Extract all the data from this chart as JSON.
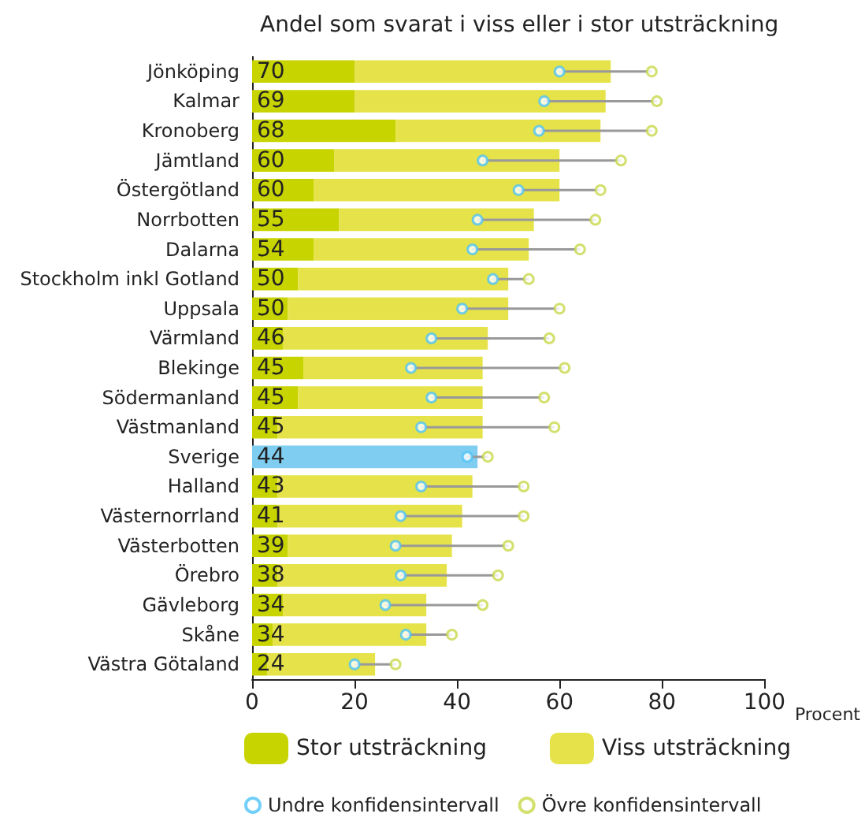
{
  "chart_data": {
    "type": "bar",
    "orientation": "horizontal",
    "stacked": true,
    "title": "Andel som svarat i viss eller i stor utsträckning",
    "xlabel": "Procent",
    "categories": [
      "Jönköping",
      "Kalmar",
      "Kronoberg",
      "Jämtland",
      "Östergötland",
      "Norrbotten",
      "Dalarna",
      "Stockholm inkl Gotland",
      "Uppsala",
      "Värmland",
      "Blekinge",
      "Södermanland",
      "Västmanland",
      "Sverige",
      "Halland",
      "Västernorrland",
      "Västerbotten",
      "Örebro",
      "Gävleborg",
      "Skåne",
      "Västra Götaland"
    ],
    "series": [
      {
        "name": "Stor utsträckning",
        "color": "#c8d400",
        "values": [
          20,
          20,
          28,
          16,
          12,
          17,
          12,
          9,
          7,
          6,
          10,
          9,
          5,
          null,
          5,
          5,
          7,
          5,
          6,
          4,
          3
        ]
      },
      {
        "name": "Viss utsträckning",
        "color": "#e6e34a",
        "colors": [
          "#e6e34a",
          "#e6e34a",
          "#e6e34a",
          "#e6e34a",
          "#e6e34a",
          "#e6e34a",
          "#e6e34a",
          "#e6e34a",
          "#e6e34a",
          "#e6e34a",
          "#e6e34a",
          "#e6e34a",
          "#e6e34a",
          "#7fcdf0",
          "#e6e34a",
          "#e6e34a",
          "#e6e34a",
          "#e6e34a",
          "#e6e34a",
          "#e6e34a",
          "#e6e34a"
        ],
        "values": [
          50,
          49,
          40,
          44,
          48,
          38,
          42,
          41,
          43,
          40,
          35,
          36,
          40,
          44,
          38,
          36,
          32,
          33,
          28,
          30,
          21
        ]
      },
      {
        "name": "Undre konfidensintervall",
        "type": "scatter",
        "color": "#4fc3f7",
        "values": [
          60,
          57,
          56,
          45,
          52,
          44,
          43,
          47,
          41,
          35,
          31,
          35,
          33,
          42,
          33,
          29,
          28,
          29,
          26,
          30,
          20
        ]
      },
      {
        "name": "Övre konfidensintervall",
        "type": "scatter",
        "color": "#c8d84a",
        "values": [
          78,
          79,
          78,
          72,
          68,
          67,
          64,
          54,
          60,
          58,
          61,
          57,
          59,
          46,
          53,
          53,
          50,
          48,
          45,
          39,
          28
        ]
      }
    ],
    "totals": [
      "70",
      "69",
      "68",
      "60",
      "60",
      "55",
      "54",
      "50",
      "50",
      "46",
      "45",
      "45",
      "45",
      "44",
      "43",
      "41",
      "39",
      "38",
      "34",
      "34",
      "24"
    ],
    "xlim": [
      0,
      100
    ],
    "xticks": [
      0,
      20,
      40,
      60,
      80,
      100
    ],
    "grid": false,
    "legend": "bottom",
    "marker": "circle"
  }
}
